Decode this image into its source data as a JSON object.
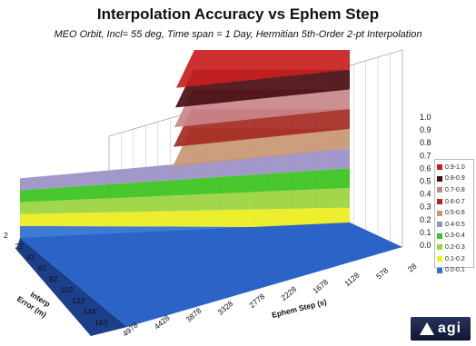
{
  "chart_data": {
    "type": "surface",
    "title": "Interpolation Accuracy vs Ephem Step",
    "subtitle": "MEO Orbit, Incl= 55 deg, Time span = 1 Day, Hermitian 5th-Order 2-pt Interpolation",
    "xlabel": "Ephem Step (s)",
    "ylabel": "Interp Error (m)",
    "x_ticks": [
      "4978",
      "4428",
      "3878",
      "3328",
      "2778",
      "2228",
      "1678",
      "1128",
      "578",
      "28"
    ],
    "y_ticks": [
      "2",
      "22",
      "42",
      "62",
      "82",
      "102",
      "122",
      "143",
      "163"
    ],
    "z_ticks": [
      "0.0",
      "0.1",
      "0.2",
      "0.3",
      "0.4",
      "0.5",
      "0.6",
      "0.7",
      "0.8",
      "0.9",
      "1.0"
    ],
    "zlim": [
      0,
      1
    ],
    "legend_placement": "right",
    "legend": [
      {
        "label": "0.9-1.0",
        "color": "#c8201e"
      },
      {
        "label": "0.8-0.9",
        "color": "#4a0d12"
      },
      {
        "label": "0.7-0.8",
        "color": "#c8878a"
      },
      {
        "label": "0.6-0.7",
        "color": "#a52a22"
      },
      {
        "label": "0.5-0.6",
        "color": "#c89673"
      },
      {
        "label": "0.4-0.5",
        "color": "#9a8fc4"
      },
      {
        "label": "0.3-0.4",
        "color": "#39c21c"
      },
      {
        "label": "0.2-0.3",
        "color": "#9ad43c"
      },
      {
        "label": "0.1-0.2",
        "color": "#ecee1c"
      },
      {
        "label": "0.0-0.1",
        "color": "#2f6fd0"
      }
    ],
    "logo_text": "agi"
  }
}
